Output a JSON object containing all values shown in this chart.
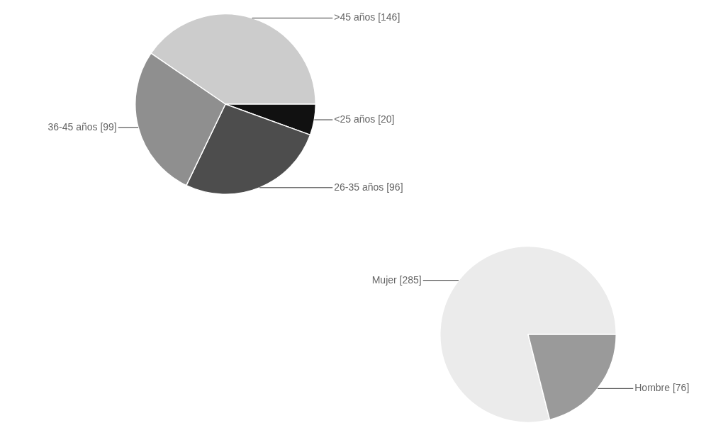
{
  "chart_data": [
    {
      "type": "pie",
      "categories": [
        ">45 años [146]",
        "<25 años [20]",
        "26-35 años [96]",
        "36-45 años [99]"
      ],
      "values": [
        146,
        20,
        96,
        99
      ],
      "colors": [
        "#cccccc",
        "#111111",
        "#4d4d4d",
        "#8f8f8f"
      ],
      "legend": false
    },
    {
      "type": "pie",
      "categories": [
        "Mujer [285]",
        "Hombre [76]"
      ],
      "values": [
        285,
        76
      ],
      "colors": [
        "#ebebeb",
        "#9a9a9a"
      ],
      "legend": false
    }
  ]
}
